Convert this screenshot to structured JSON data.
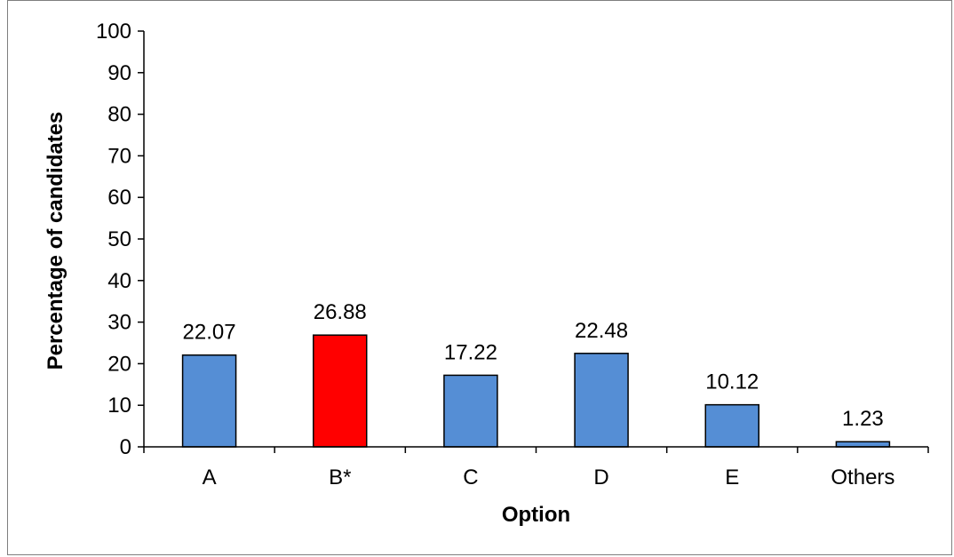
{
  "chart_data": {
    "type": "bar",
    "categories": [
      "A",
      "B*",
      "C",
      "D",
      "E",
      "Others"
    ],
    "values": [
      22.07,
      26.88,
      17.22,
      22.48,
      10.12,
      1.23
    ],
    "data_labels": [
      "22.07",
      "26.88",
      "17.22",
      "22.48",
      "10.12",
      "1.23"
    ],
    "title": "",
    "xlabel": "Option",
    "ylabel": "Percentage of candidates",
    "ylim": [
      0,
      100
    ],
    "yticks": [
      0,
      10,
      20,
      30,
      40,
      50,
      60,
      70,
      80,
      90,
      100
    ],
    "ytick_labels": [
      "0",
      "10",
      "20",
      "30",
      "40",
      "50",
      "60",
      "70",
      "80",
      "90",
      "100"
    ],
    "grid": false,
    "legend": "none",
    "highlight_category": "B*",
    "colors": {
      "bar": "#558ed5",
      "highlight_bar": "#ff0000",
      "bar_edge": "#000000",
      "axis": "#000000",
      "frame": "#7f7f7f"
    }
  }
}
